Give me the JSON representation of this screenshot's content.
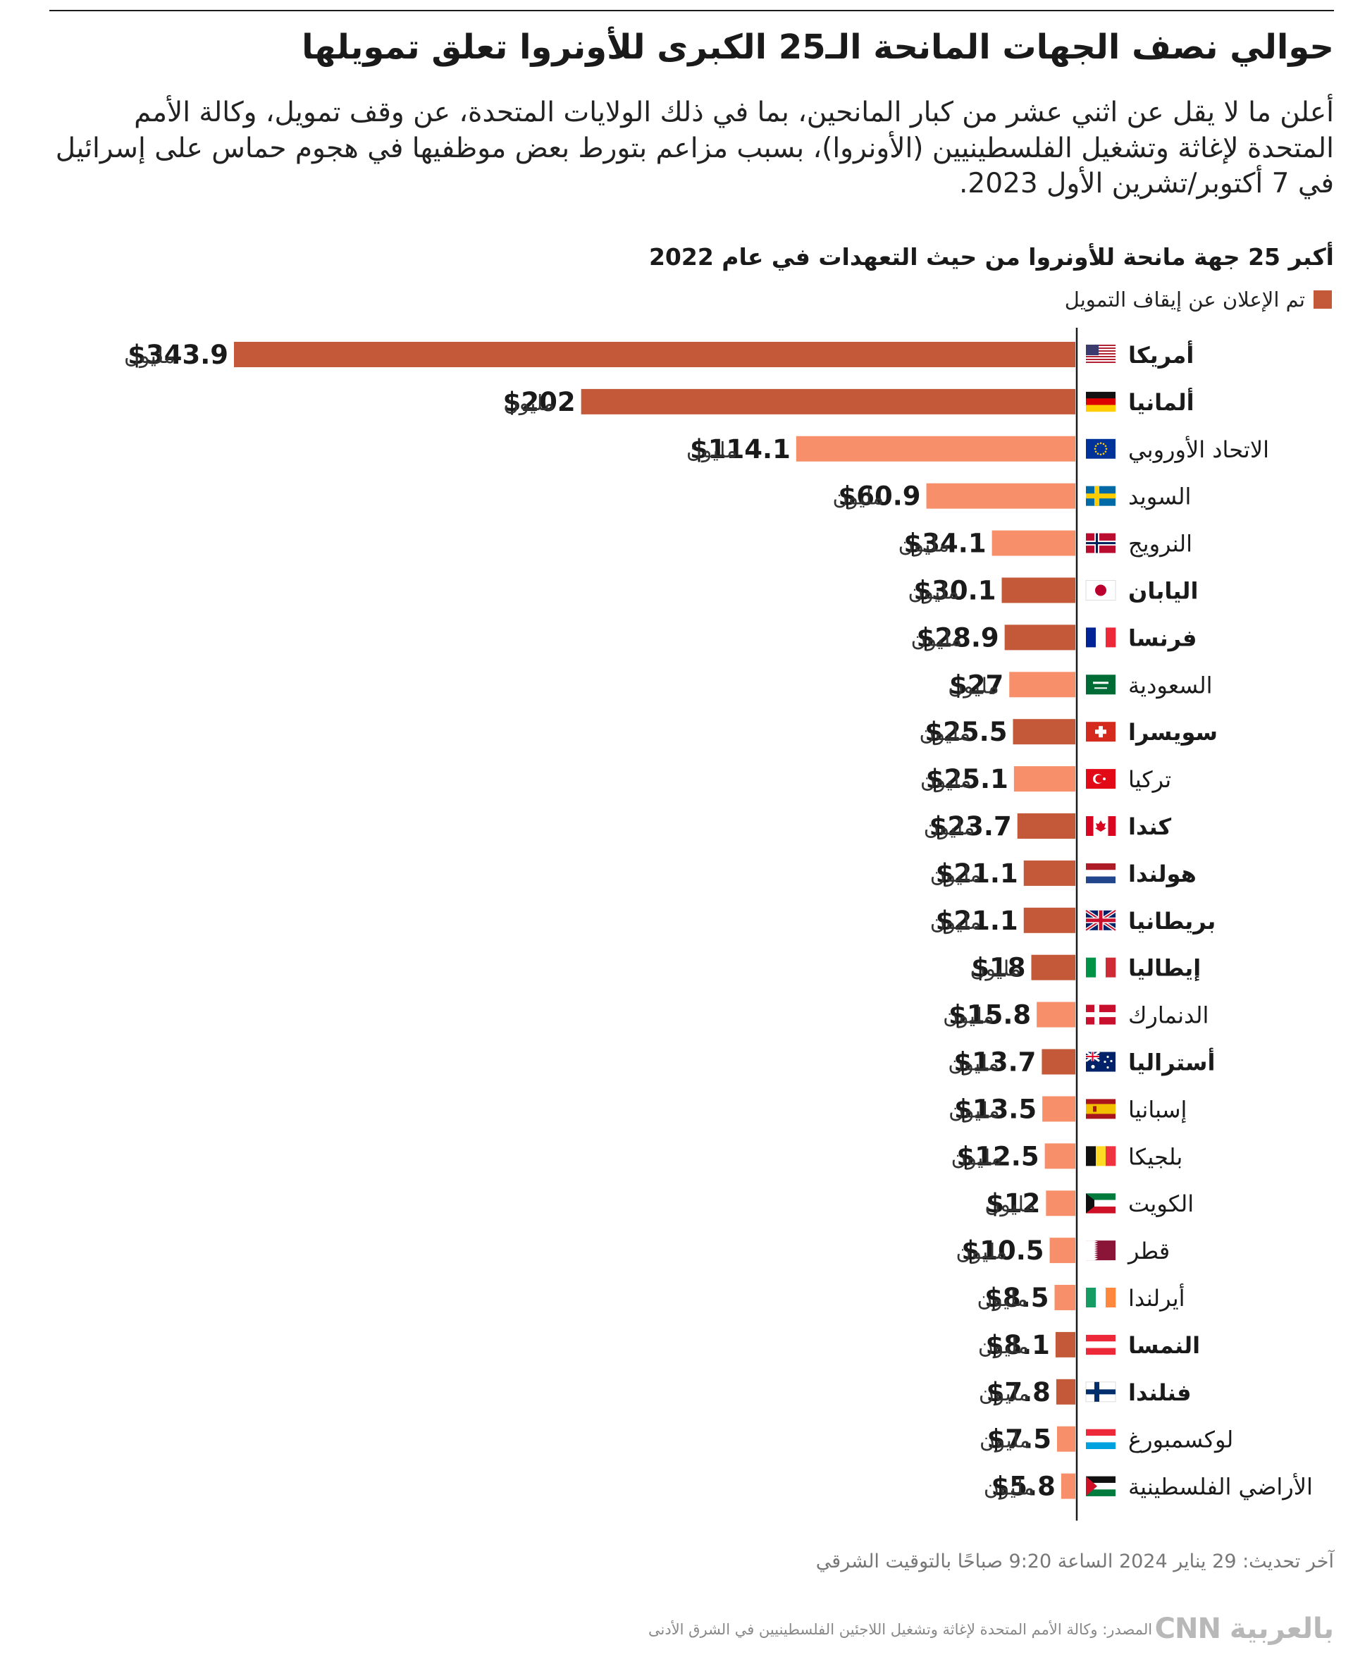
{
  "title": "حوالي نصف الجهات المانحة الـ25 الكبرى للأونروا تعلق تمويلها",
  "subtitle": "أعلن ما لا يقل عن اثني عشر من كبار المانحين، بما في ذلك الولايات المتحدة، عن وقف تمويل، وكالة الأمم المتحدة لإغاثة وتشغيل الفلسطينيين (الأونروا)، بسبب مزاعم بتورط بعض موظفيها في هجوم حماس على إسرائيل في 7 أكتوبر/تشرين الأول 2023.",
  "colors": {
    "suspended": "#c4593a",
    "other": "#f7906a",
    "text": "#1a1a1a"
  },
  "chart_data": {
    "type": "bar",
    "orientation": "horizontal",
    "title": "أكبر 25 جهة مانحة للأونروا من حيث التعهدات في عام 2022",
    "legend": {
      "label": "تم الإعلان عن إيقاف التمويل",
      "placement": "top-right"
    },
    "unit_label": "مليون",
    "value_prefix": "$",
    "xlim": [
      0,
      343.9
    ],
    "grid": false,
    "categories": [
      {
        "name": "أمريكا",
        "value": 343.9,
        "suspended": true,
        "flag": "us-flag-icon"
      },
      {
        "name": "ألمانيا",
        "value": 202,
        "suspended": true,
        "flag": "de-flag-icon"
      },
      {
        "name": "الاتحاد الأوروبي",
        "value": 114.1,
        "suspended": false,
        "flag": "eu-flag-icon"
      },
      {
        "name": "السويد",
        "value": 60.9,
        "suspended": false,
        "flag": "se-flag-icon"
      },
      {
        "name": "النرويج",
        "value": 34.1,
        "suspended": false,
        "flag": "no-flag-icon"
      },
      {
        "name": "اليابان",
        "value": 30.1,
        "suspended": true,
        "flag": "jp-flag-icon"
      },
      {
        "name": "فرنسا",
        "value": 28.9,
        "suspended": true,
        "flag": "fr-flag-icon"
      },
      {
        "name": "السعودية",
        "value": 27,
        "suspended": false,
        "flag": "sa-flag-icon"
      },
      {
        "name": "سويسرا",
        "value": 25.5,
        "suspended": true,
        "flag": "ch-flag-icon"
      },
      {
        "name": "تركيا",
        "value": 25.1,
        "suspended": false,
        "flag": "tr-flag-icon"
      },
      {
        "name": "كندا",
        "value": 23.7,
        "suspended": true,
        "flag": "ca-flag-icon"
      },
      {
        "name": "هولندا",
        "value": 21.1,
        "suspended": true,
        "flag": "nl-flag-icon"
      },
      {
        "name": "بريطانيا",
        "value": 21.1,
        "suspended": true,
        "flag": "gb-flag-icon"
      },
      {
        "name": "إيطاليا",
        "value": 18,
        "suspended": true,
        "flag": "it-flag-icon"
      },
      {
        "name": "الدنمارك",
        "value": 15.8,
        "suspended": false,
        "flag": "dk-flag-icon"
      },
      {
        "name": "أستراليا",
        "value": 13.7,
        "suspended": true,
        "flag": "au-flag-icon"
      },
      {
        "name": "إسبانيا",
        "value": 13.5,
        "suspended": false,
        "flag": "es-flag-icon"
      },
      {
        "name": "بلجيكا",
        "value": 12.5,
        "suspended": false,
        "flag": "be-flag-icon"
      },
      {
        "name": "الكويت",
        "value": 12,
        "suspended": false,
        "flag": "kw-flag-icon"
      },
      {
        "name": "قطر",
        "value": 10.5,
        "suspended": false,
        "flag": "qa-flag-icon"
      },
      {
        "name": "أيرلندا",
        "value": 8.5,
        "suspended": false,
        "flag": "ie-flag-icon"
      },
      {
        "name": "النمسا",
        "value": 8.1,
        "suspended": true,
        "flag": "at-flag-icon"
      },
      {
        "name": "فنلندا",
        "value": 7.8,
        "suspended": true,
        "flag": "fi-flag-icon"
      },
      {
        "name": "لوكسمبورغ",
        "value": 7.5,
        "suspended": false,
        "flag": "lu-flag-icon"
      },
      {
        "name": "الأراضي الفلسطينية",
        "value": 5.8,
        "suspended": false,
        "flag": "ps-flag-icon"
      }
    ]
  },
  "footer": {
    "update": "آخر تحديث: 29 يناير 2024 الساعة 9:20 صباحًا بالتوقيت الشرقي",
    "source": "المصدر: وكالة الأمم المتحدة لإغاثة وتشغيل اللاجئين الفلسطينيين في الشرق الأدنى",
    "logo_cnn": "CNN",
    "logo_arabic": "بالعربية"
  }
}
